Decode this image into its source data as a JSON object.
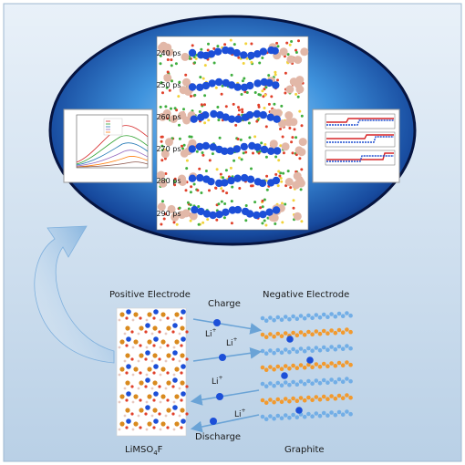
{
  "time_labels": [
    "240 ps",
    "250 ps",
    "260 ps",
    "270 ps",
    "280 ps",
    "290 ps"
  ],
  "labels": {
    "positive_electrode": "Positive Electrode",
    "negative_electrode": "Negative Electrode",
    "charge": "Charge",
    "discharge": "Discharge",
    "ion": "Li",
    "ion_sup": "+",
    "cathode_prefix": "LiMSO",
    "cathode_sub": "4",
    "cathode_suffix": "F",
    "anode_material": "Graphite"
  },
  "colors": {
    "frame": "#c3d7ea",
    "ellipse_edge": "#0a1f5c",
    "ellipse_center": "#8fc7f2",
    "lithium": "#1c4fd8",
    "graphite_orange": "#f29a2e",
    "graphite_blue": "#72aee6",
    "arrow": "#6aa3d6"
  }
}
